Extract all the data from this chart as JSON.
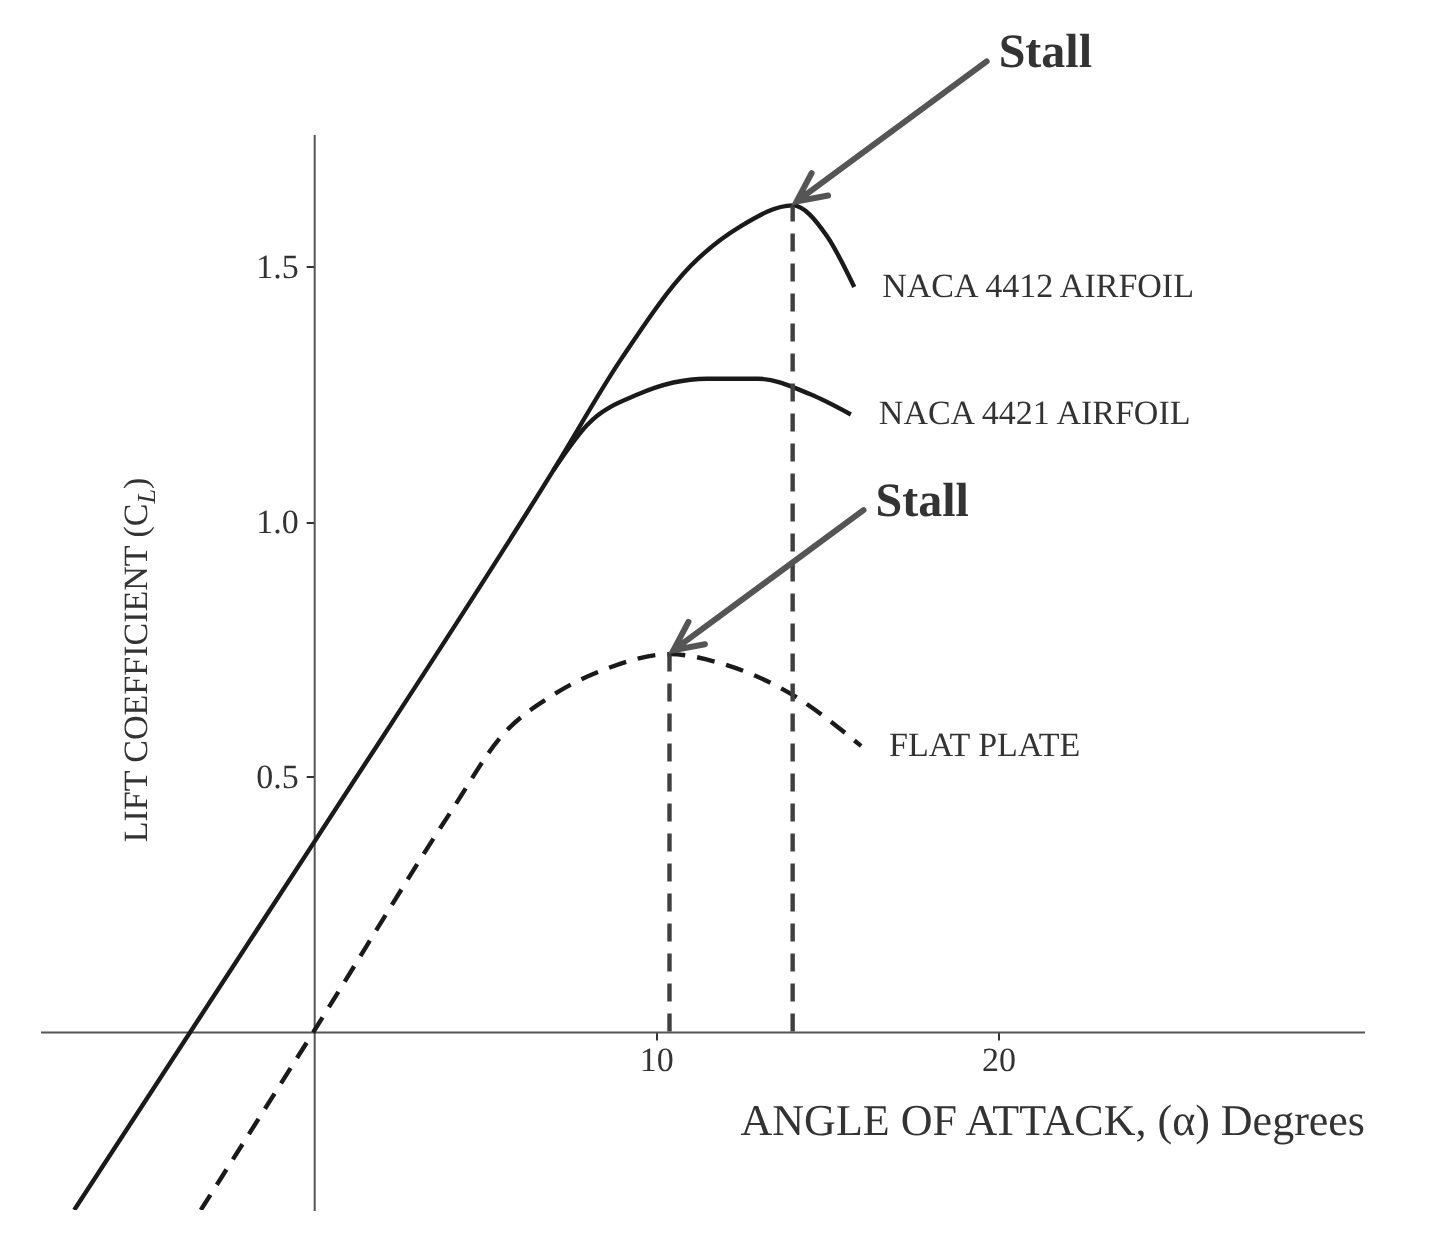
{
  "chart_data": {
    "type": "line",
    "xlabel": "ANGLE OF ATTACK, (α) Degrees",
    "ylabel": "LIFT COEFFICIENT (C$_{L}$)",
    "xlim": [
      -8,
      30.7
    ],
    "ylim": [
      -0.35,
      1.76
    ],
    "xticks": [
      10,
      20
    ],
    "yticks": [
      0.5,
      {
        "value": 1.0,
        "label": "1.0"
      },
      1.5
    ],
    "series": [
      {
        "name": "NACA 4412 AIRFOIL",
        "color": "#1a1a1a",
        "line_style": "solid",
        "x": [
          -7,
          0,
          7,
          9,
          11,
          12.5,
          14,
          15,
          15.8
        ],
        "values": [
          -0.35,
          0.37,
          1.1,
          1.32,
          1.5,
          1.58,
          1.62,
          1.56,
          1.46
        ]
      },
      {
        "name": "NACA 4421 AIRFOIL",
        "color": "#1a1a1a",
        "line_style": "solid",
        "x": [
          7,
          8,
          9.5,
          11.5,
          13,
          14.5,
          15.7
        ],
        "values": [
          1.1,
          1.19,
          1.25,
          1.28,
          1.28,
          1.25,
          1.21
        ]
      },
      {
        "name": "FLAT PLATE",
        "color": "#1a1a1a",
        "line_style": "dashed",
        "x": [
          -3.3,
          0,
          4,
          5.5,
          7,
          8.5,
          10.4,
          12,
          14,
          16
        ],
        "values": [
          -0.35,
          0,
          0.43,
          0.58,
          0.66,
          0.71,
          0.74,
          0.72,
          0.66,
          0.56
        ]
      },
      {
        "color": "#404040",
        "line_style": "dashed",
        "x": [
          14,
          14
        ],
        "values": [
          0,
          1.62
        ]
      },
      {
        "color": "#404040",
        "line_style": "dashed",
        "x": [
          10.4,
          10.4
        ],
        "values": [
          0,
          0.74
        ]
      }
    ],
    "annotations": [
      {
        "text": "Stall",
        "x": 14,
        "y": 1.62
      },
      {
        "text": "Stall",
        "x": 10.4,
        "y": 0.74
      }
    ]
  }
}
